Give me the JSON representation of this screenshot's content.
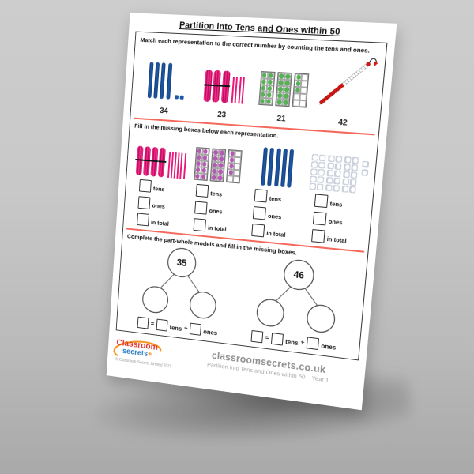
{
  "page": {
    "title": "Partition into Tens and Ones within 50"
  },
  "sections": [
    {
      "instruction": "Match each representation to the correct number by counting the tens and ones."
    },
    {
      "instruction": "Fill in the missing boxes below each representation."
    },
    {
      "instruction": "Complete the part-whole models and fill in the missing boxes."
    }
  ],
  "match": {
    "numbers": [
      "34",
      "23",
      "21",
      "42"
    ],
    "representations": [
      {
        "type": "base10",
        "tens": 4,
        "ones": 2
      },
      {
        "type": "bundles",
        "tens": 3,
        "ones": 4
      },
      {
        "type": "frames",
        "tens": 2,
        "ones": 3,
        "color": "#55b255"
      },
      {
        "type": "beads",
        "tens": 2,
        "ones": 1
      }
    ]
  },
  "fill": {
    "labels": [
      "tens",
      "ones",
      "in total"
    ],
    "representations": [
      {
        "type": "bundles",
        "tens": 4,
        "ones": 6
      },
      {
        "type": "frames",
        "tens": 2,
        "ones": 4,
        "color": "#b55ab2"
      },
      {
        "type": "base10",
        "tens": 5,
        "ones": 0
      },
      {
        "type": "numicon",
        "tens": 3,
        "ones": 2
      }
    ]
  },
  "partwhole": {
    "models": [
      {
        "whole": "35"
      },
      {
        "whole": "46"
      }
    ],
    "equation": {
      "equals": "=",
      "tens_label": "tens",
      "plus": "+",
      "ones_label": "ones"
    }
  },
  "footer": {
    "logo_line1": "Classroom",
    "logo_line2": "secrets",
    "logo_plus": "+",
    "copyright": "© Classroom Secrets Limited 2021",
    "site": "classroomsecrets.co.uk",
    "resource": "Partition into Tens and Ones within 50 – Year 1"
  },
  "colors": {
    "red_divider": "#f4695c",
    "blue_rod": "#1d57a5",
    "pink_straw": "#e9187c",
    "green_counter": "#55b255",
    "purple_counter": "#b55ab2",
    "gray_counter_bg": "#c9cfdb",
    "bead_red": "#d81512",
    "logo_red": "#e03127",
    "logo_blue": "#2a7ac0",
    "logo_orange": "#f7941d"
  }
}
